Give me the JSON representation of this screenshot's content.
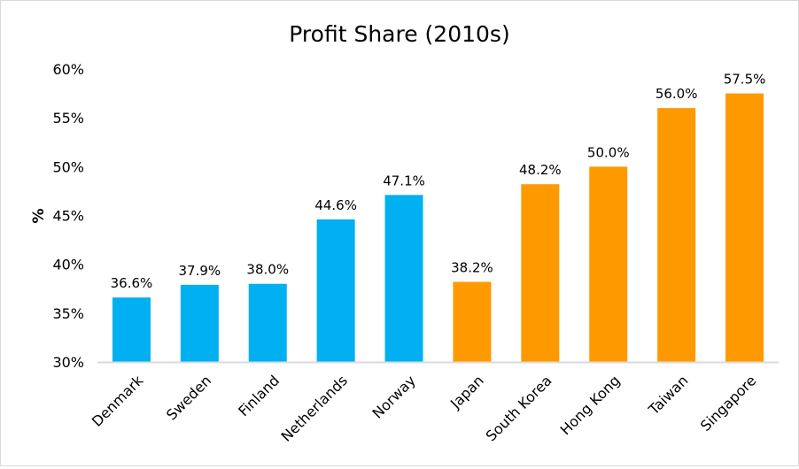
{
  "chart_data": {
    "type": "bar",
    "title": "Profit Share (2010s)",
    "xlabel": "",
    "ylabel": "%",
    "ylim": [
      30,
      60
    ],
    "yticks": [
      "30%",
      "35%",
      "40%",
      "45%",
      "50%",
      "55%",
      "60%"
    ],
    "ytick_values": [
      30,
      35,
      40,
      45,
      50,
      55,
      60
    ],
    "grid": false,
    "legend": "none",
    "categories": [
      "Denmark",
      "Sweden",
      "Finland",
      "Netherlands",
      "Norway",
      "Japan",
      "South Korea",
      "Hong Kong",
      "Taiwan",
      "Singapore"
    ],
    "values": [
      36.6,
      37.9,
      38.0,
      44.6,
      47.1,
      38.2,
      48.2,
      50.0,
      56.0,
      57.5
    ],
    "data_labels": [
      "36.6%",
      "37.9%",
      "38.0%",
      "44.6%",
      "47.1%",
      "38.2%",
      "48.2%",
      "50.0%",
      "56.0%",
      "57.5%"
    ],
    "bar_colors": [
      "#00b0f0",
      "#00b0f0",
      "#00b0f0",
      "#00b0f0",
      "#00b0f0",
      "#ff9900",
      "#ff9900",
      "#ff9900",
      "#ff9900",
      "#ff9900"
    ],
    "axis_color": "#d9d9d9"
  }
}
